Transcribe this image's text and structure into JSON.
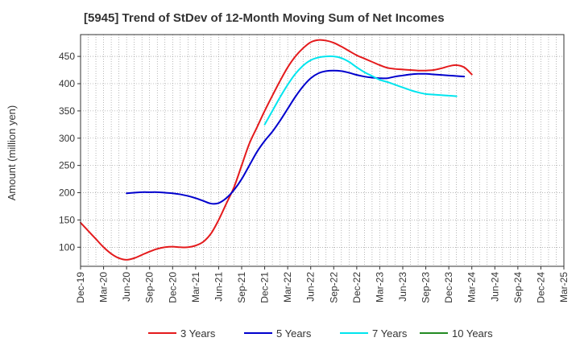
{
  "chart_data": {
    "type": "line",
    "title": "[5945]  Trend of StDev of 12-Month Moving Sum of Net Incomes",
    "ylabel": "Amount (million yen)",
    "xlabel": "",
    "ylim": [
      65,
      490
    ],
    "yticks": [
      100,
      150,
      200,
      250,
      300,
      350,
      400,
      450
    ],
    "xtick_labels": [
      "Dec-19",
      "Mar-20",
      "Jun-20",
      "Sep-20",
      "Dec-20",
      "Mar-21",
      "Jun-21",
      "Sep-21",
      "Dec-21",
      "Mar-22",
      "Jun-22",
      "Sep-22",
      "Dec-22",
      "Mar-23",
      "Jun-23",
      "Sep-23",
      "Dec-23",
      "Mar-24",
      "Jun-24",
      "Sep-24",
      "Dec-24",
      "Mar-25"
    ],
    "grid": true,
    "legend_position": "bottom",
    "series": [
      {
        "name": "3 Years",
        "color": "#e41a1c",
        "start_index": 0,
        "values": [
          145,
          130,
          115,
          100,
          88,
          80,
          77,
          80,
          86,
          92,
          97,
          100,
          101,
          100,
          100,
          103,
          110,
          125,
          150,
          180,
          210,
          250,
          290,
          320,
          350,
          378,
          405,
          430,
          450,
          465,
          476,
          480,
          479,
          475,
          468,
          460,
          452,
          446,
          440,
          434,
          429,
          427,
          426,
          425,
          424,
          424,
          425,
          428,
          432,
          434,
          430,
          417
        ]
      },
      {
        "name": "5 Years",
        "color": "#0000cd",
        "start_index": 6,
        "values": [
          199,
          200,
          201,
          201,
          201,
          200,
          199,
          197,
          194,
          190,
          185,
          180,
          181,
          190,
          205,
          225,
          250,
          275,
          295,
          312,
          332,
          354,
          376,
          395,
          410,
          419,
          423,
          424,
          423,
          420,
          416,
          413,
          411,
          410,
          410,
          413,
          415,
          417,
          418,
          418,
          417,
          416,
          415,
          414,
          413
        ]
      },
      {
        "name": "7 Years",
        "color": "#00e5ee",
        "start_index": 24,
        "values": [
          325,
          350,
          375,
          398,
          418,
          433,
          443,
          448,
          450,
          450,
          447,
          440,
          430,
          421,
          414,
          407,
          403,
          398,
          393,
          388,
          384,
          381,
          380,
          379,
          378,
          377
        ]
      },
      {
        "name": "10 Years",
        "color": "#228b22",
        "start_index": 0,
        "values": []
      }
    ]
  }
}
